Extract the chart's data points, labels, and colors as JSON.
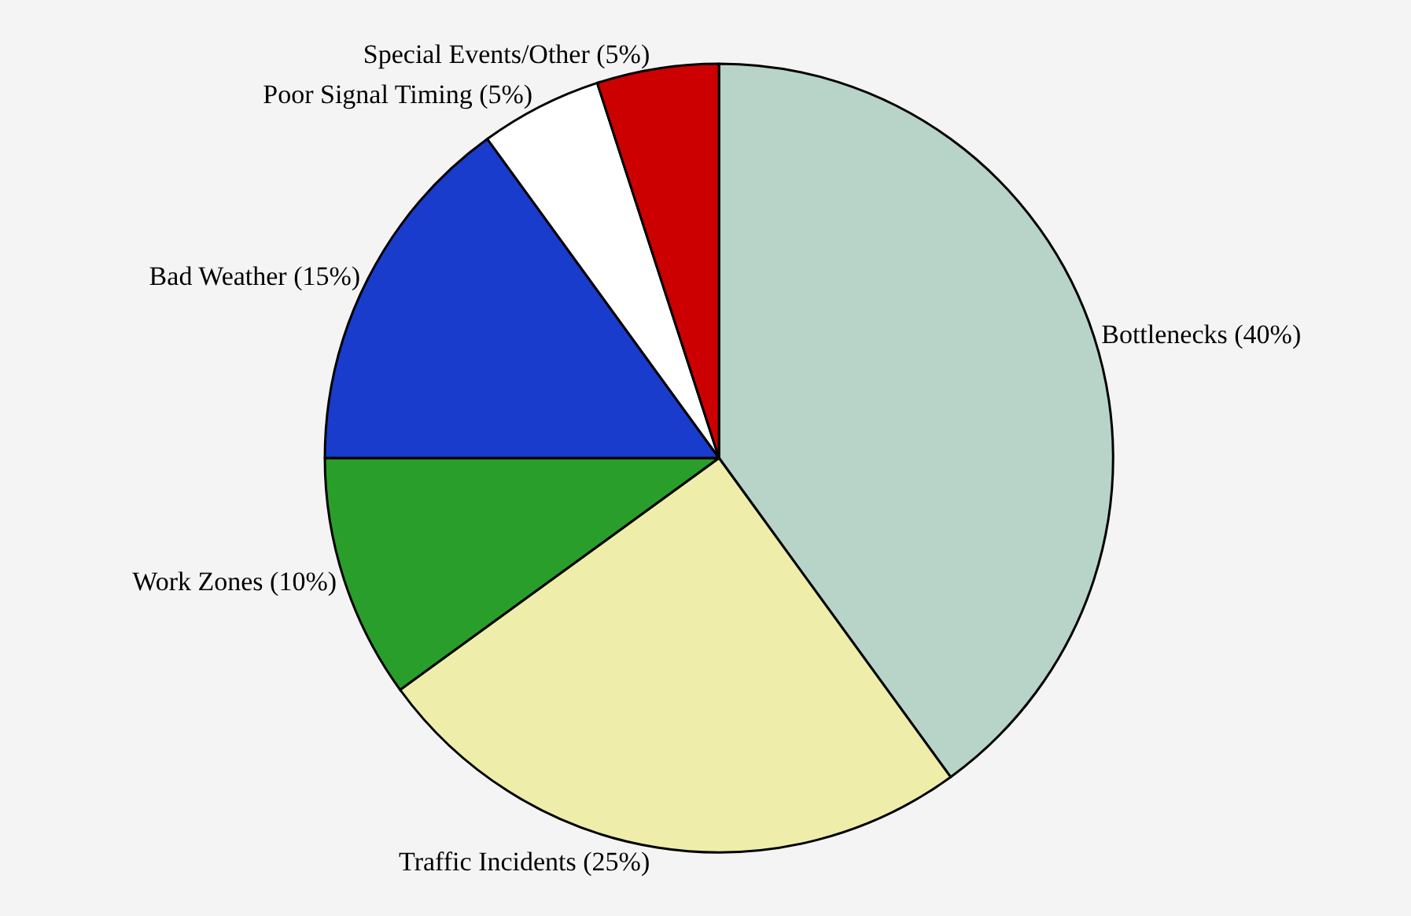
{
  "chart_data": {
    "type": "pie",
    "categories": [
      "Bottlenecks (40%)",
      "Traffic Incidents (25%)",
      "Work Zones (10%)",
      "Bad Weather (15%)",
      "Poor Signal Timing (5%)",
      "Special Events/Other (5%)"
    ],
    "values": [
      40,
      25,
      10,
      15,
      5,
      5
    ],
    "colors": [
      "#b8d4c8",
      "#eeeeaa",
      "#2a9e2a",
      "#1a3ccc",
      "#ffffff",
      "#cc0000"
    ],
    "legend": false
  }
}
